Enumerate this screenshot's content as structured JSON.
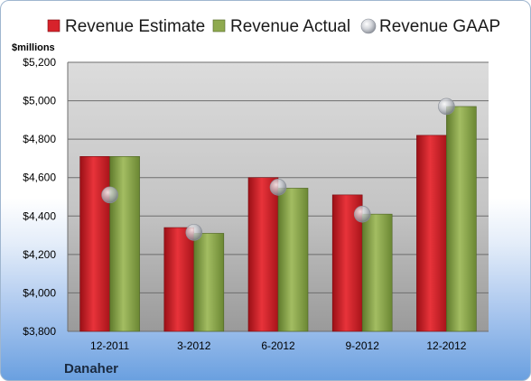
{
  "company": "Danaher",
  "chart_data": {
    "type": "bar",
    "categories": [
      "12-2011",
      "3-2012",
      "6-2012",
      "9-2012",
      "12-2012"
    ],
    "series": [
      {
        "name": "Revenue Estimate",
        "color": "#d7232b",
        "marker": "bar",
        "values": [
          4710,
          4340,
          4600,
          4510,
          4820
        ]
      },
      {
        "name": "Revenue Actual",
        "color": "#8faa4f",
        "marker": "bar",
        "values": [
          4710,
          4310,
          4545,
          4410,
          4970
        ]
      },
      {
        "name": "Revenue GAAP",
        "color": "#b8bcc4",
        "marker": "sphere",
        "values": [
          4510,
          4315,
          4550,
          4410,
          4970
        ]
      }
    ],
    "ylabel": "$millions",
    "ylim": [
      3800,
      5200
    ],
    "yticks": [
      3800,
      4000,
      4200,
      4400,
      4600,
      4800,
      5000,
      5200
    ],
    "ytick_labels": [
      "$3,800",
      "$4,000",
      "$4,200",
      "$4,400",
      "$4,600",
      "$4,800",
      "$5,000",
      "$5,200"
    ],
    "grid": true,
    "legend_position": "top"
  }
}
